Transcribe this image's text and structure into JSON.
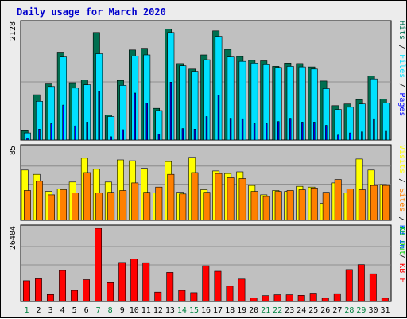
{
  "chart_data": {
    "type": "bar",
    "title": "Daily usage for March 2020",
    "days": [
      "1",
      "2",
      "3",
      "4",
      "5",
      "6",
      "7",
      "8",
      "9",
      "10",
      "11",
      "12",
      "13",
      "14",
      "15",
      "16",
      "17",
      "18",
      "19",
      "20",
      "21",
      "22",
      "23",
      "24",
      "25",
      "26",
      "27",
      "28",
      "29",
      "30",
      "31"
    ],
    "weekend_days": [
      "1",
      "7",
      "8",
      "14",
      "15",
      "21",
      "22",
      "28",
      "29"
    ],
    "colors": {
      "hits": "#006f50",
      "files": "#00e0ff",
      "pages": "#0000ff",
      "visits": "#ffff00",
      "sites": "#ff8000",
      "kbin": "#0060ff",
      "kbout": "#00cc00",
      "kbf": "#ff0000",
      "weekday_label": "#000000",
      "weekend_label": "#008040",
      "panel_bg": "#c0c0c0"
    },
    "panels": [
      {
        "ytick": "2128",
        "ylim": [
          0,
          2128
        ],
        "legend": [
          {
            "text": "Hits",
            "color": "#006f50"
          },
          {
            "text": "Files",
            "color": "#00e0ff"
          },
          {
            "text": "Pages",
            "color": "#0000ff"
          }
        ],
        "series": [
          {
            "name": "Hits",
            "values": [
              170,
              830,
              1040,
              1610,
              1050,
              1100,
              1970,
              460,
              1090,
              1650,
              1680,
              580,
              2030,
              1400,
              1300,
              1560,
              2000,
              1660,
              1530,
              1460,
              1450,
              1350,
              1410,
              1400,
              1340,
              1080,
              630,
              660,
              740,
              1170,
              750
            ]
          },
          {
            "name": "Files",
            "values": [
              130,
              710,
              980,
              1520,
              950,
              1010,
              1580,
              430,
              1000,
              1540,
              1560,
              540,
              1970,
              1360,
              1260,
              1470,
              1900,
              1520,
              1440,
              1410,
              1380,
              1330,
              1350,
              1340,
              1300,
              940,
              560,
              600,
              660,
              1120,
              680
            ]
          },
          {
            "name": "Pages",
            "values": [
              30,
              200,
              300,
              640,
              260,
              330,
              900,
              60,
              190,
              860,
              680,
              110,
              1060,
              210,
              200,
              430,
              820,
              400,
              390,
              300,
              300,
              340,
              400,
              330,
              330,
              270,
              90,
              130,
              150,
              390,
              160
            ]
          }
        ]
      },
      {
        "ytick": "85",
        "ylim": [
          0,
          85
        ],
        "legend": [
          {
            "text": "Visits",
            "color": "#ffff00"
          },
          {
            "text": "Sites",
            "color": "#ff8000"
          },
          {
            "text": "KB Out",
            "color": "#00cc00"
          }
        ],
        "series": [
          {
            "name": "Visits",
            "values": [
              59,
              54,
              34,
              37,
              45,
              73,
              60,
              45,
              71,
              70,
              61,
              32,
              69,
              33,
              74,
              36,
              58,
              55,
              57,
              41,
              30,
              35,
              34,
              40,
              39,
              20,
              44,
              32,
              72,
              59,
              42
            ]
          },
          {
            "name": "Sites",
            "values": [
              35,
              46,
              30,
              36,
              32,
              56,
              32,
              33,
              35,
              44,
              33,
              39,
              54,
              31,
              56,
              33,
              55,
              50,
              49,
              34,
              28,
              34,
              35,
              36,
              38,
              33,
              48,
              37,
              36,
              41,
              41
            ]
          }
        ]
      },
      {
        "ytick": "26404",
        "ylim": [
          0,
          26404
        ],
        "legend": [
          {
            "text": "KB In",
            "color": "#0060ff"
          },
          {
            "text": "KB F",
            "color": "#ff0000"
          }
        ],
        "series": [
          {
            "name": "KB F",
            "values": [
              7500,
              8200,
              2500,
              11200,
              4000,
              7900,
              26404,
              6800,
              14100,
              15300,
              14000,
              3400,
              10500,
              4000,
              3200,
              12900,
              10900,
              5500,
              8100,
              1300,
              2100,
              2400,
              2400,
              2200,
              3000,
              1200,
              2800,
              11500,
              13300,
              10000,
              1200
            ]
          }
        ]
      }
    ]
  }
}
